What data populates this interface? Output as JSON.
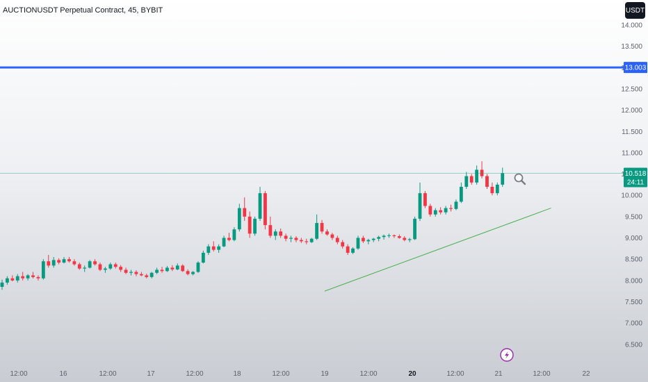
{
  "header": {
    "title": "AUCTIONUSDT Perpetual Contract, 45, BYBIT",
    "currency": "USDT"
  },
  "colors": {
    "up": "#089981",
    "down": "#f23645",
    "alert_line": "#2962ff",
    "trendline": "#4caf50",
    "price_line": "#089981"
  },
  "price_tag": {
    "price": "10.518",
    "countdown": "24:11"
  },
  "alert_line": {
    "label": "13.003",
    "price": 13.003
  },
  "icons": {
    "zoom": "magnifier-icon",
    "event": "lightning-icon"
  },
  "chart_data": {
    "type": "candlestick",
    "title": "AUCTIONUSDT Perpetual Contract, 45, BYBIT",
    "y_axis": {
      "ticks": [
        "14.000",
        "13.500",
        "13.000",
        "12.500",
        "12.000",
        "11.500",
        "11.000",
        "10.500",
        "10.000",
        "9.500",
        "9.000",
        "8.500",
        "8.000",
        "7.500",
        "7.000",
        "6.500"
      ],
      "range": [
        6.2,
        14.3
      ]
    },
    "x_axis": {
      "ticks": [
        {
          "label": "12:00",
          "bold": false
        },
        {
          "label": "16",
          "bold": false
        },
        {
          "label": "12:00",
          "bold": false
        },
        {
          "label": "17",
          "bold": false
        },
        {
          "label": "12:00",
          "bold": false
        },
        {
          "label": "18",
          "bold": false
        },
        {
          "label": "12:00",
          "bold": false
        },
        {
          "label": "19",
          "bold": false
        },
        {
          "label": "12:00",
          "bold": false
        },
        {
          "label": "20",
          "bold": true
        },
        {
          "label": "12:00",
          "bold": false
        },
        {
          "label": "21",
          "bold": false
        },
        {
          "label": "12:00",
          "bold": false
        },
        {
          "label": "22",
          "bold": false
        }
      ]
    },
    "horizontal_line": 13.003,
    "last_price": 10.518,
    "trendline": {
      "start": [
        "19 00:00",
        7.75
      ],
      "end": [
        "21 14:00",
        9.7
      ]
    },
    "candles": [
      [
        7.85,
        8.02,
        7.78,
        7.95
      ],
      [
        7.95,
        8.1,
        7.9,
        8.05
      ],
      [
        8.05,
        8.12,
        7.98,
        8.0
      ],
      [
        8.0,
        8.15,
        7.95,
        8.1
      ],
      [
        8.1,
        8.2,
        8.0,
        8.05
      ],
      [
        8.05,
        8.15,
        8.0,
        8.12
      ],
      [
        8.12,
        8.2,
        8.05,
        8.08
      ],
      [
        8.08,
        8.12,
        8.0,
        8.05
      ],
      [
        8.05,
        8.5,
        8.02,
        8.45
      ],
      [
        8.45,
        8.6,
        8.3,
        8.35
      ],
      [
        8.35,
        8.55,
        8.3,
        8.48
      ],
      [
        8.48,
        8.52,
        8.38,
        8.42
      ],
      [
        8.42,
        8.55,
        8.4,
        8.5
      ],
      [
        8.5,
        8.55,
        8.42,
        8.45
      ],
      [
        8.45,
        8.5,
        8.35,
        8.38
      ],
      [
        8.38,
        8.42,
        8.25,
        8.28
      ],
      [
        8.28,
        8.35,
        8.2,
        8.3
      ],
      [
        8.3,
        8.48,
        8.28,
        8.45
      ],
      [
        8.45,
        8.5,
        8.35,
        8.38
      ],
      [
        8.38,
        8.42,
        8.22,
        8.25
      ],
      [
        8.25,
        8.32,
        8.18,
        8.28
      ],
      [
        8.28,
        8.42,
        8.25,
        8.38
      ],
      [
        8.38,
        8.42,
        8.28,
        8.32
      ],
      [
        8.32,
        8.36,
        8.2,
        8.25
      ],
      [
        8.25,
        8.3,
        8.15,
        8.18
      ],
      [
        8.18,
        8.25,
        8.12,
        8.2
      ],
      [
        8.2,
        8.24,
        8.1,
        8.15
      ],
      [
        8.15,
        8.2,
        8.1,
        8.12
      ],
      [
        8.12,
        8.16,
        8.05,
        8.08
      ],
      [
        8.08,
        8.2,
        8.05,
        8.18
      ],
      [
        8.18,
        8.3,
        8.15,
        8.25
      ],
      [
        8.25,
        8.32,
        8.18,
        8.22
      ],
      [
        8.22,
        8.34,
        8.2,
        8.3
      ],
      [
        8.3,
        8.36,
        8.22,
        8.26
      ],
      [
        8.26,
        8.4,
        8.24,
        8.35
      ],
      [
        8.35,
        8.38,
        8.2,
        8.22
      ],
      [
        8.22,
        8.26,
        8.12,
        8.15
      ],
      [
        8.15,
        8.22,
        8.12,
        8.2
      ],
      [
        8.2,
        8.45,
        8.18,
        8.42
      ],
      [
        8.42,
        8.7,
        8.4,
        8.65
      ],
      [
        8.65,
        8.85,
        8.6,
        8.8
      ],
      [
        8.8,
        8.92,
        8.68,
        8.72
      ],
      [
        8.72,
        8.85,
        8.65,
        8.8
      ],
      [
        8.8,
        9.05,
        8.78,
        9.0
      ],
      [
        9.0,
        9.12,
        8.92,
        8.95
      ],
      [
        8.95,
        9.25,
        8.92,
        9.2
      ],
      [
        9.2,
        9.8,
        9.15,
        9.7
      ],
      [
        9.7,
        9.95,
        9.4,
        9.5
      ],
      [
        9.5,
        9.62,
        9.0,
        9.1
      ],
      [
        9.1,
        9.5,
        9.05,
        9.45
      ],
      [
        9.45,
        10.2,
        9.4,
        10.05
      ],
      [
        10.05,
        10.1,
        9.2,
        9.3
      ],
      [
        9.3,
        9.5,
        9.0,
        9.05
      ],
      [
        9.05,
        9.2,
        8.95,
        9.15
      ],
      [
        9.15,
        9.22,
        9.0,
        9.05
      ],
      [
        9.05,
        9.1,
        8.92,
        8.98
      ],
      [
        8.98,
        9.05,
        8.9,
        9.0
      ],
      [
        9.0,
        9.04,
        8.9,
        8.95
      ],
      [
        8.95,
        9.0,
        8.88,
        8.92
      ],
      [
        8.92,
        8.98,
        8.85,
        8.9
      ],
      [
        8.9,
        9.0,
        8.88,
        8.98
      ],
      [
        8.98,
        9.55,
        8.95,
        9.35
      ],
      [
        9.35,
        9.42,
        9.1,
        9.15
      ],
      [
        9.15,
        9.2,
        9.05,
        9.08
      ],
      [
        9.08,
        9.12,
        8.95,
        9.0
      ],
      [
        9.0,
        9.05,
        8.85,
        8.9
      ],
      [
        8.9,
        8.95,
        8.75,
        8.8
      ],
      [
        8.8,
        8.85,
        8.6,
        8.65
      ],
      [
        8.65,
        8.78,
        8.62,
        8.75
      ],
      [
        8.75,
        9.05,
        8.72,
        9.0
      ],
      [
        9.0,
        9.05,
        8.88,
        8.92
      ],
      [
        8.92,
        8.98,
        8.85,
        8.95
      ],
      [
        8.95,
        9.0,
        8.9,
        8.98
      ],
      [
        8.98,
        9.05,
        8.92,
        9.02
      ],
      [
        9.02,
        9.08,
        8.96,
        9.05
      ],
      [
        9.05,
        9.1,
        9.0,
        9.06
      ],
      [
        9.06,
        9.08,
        9.0,
        9.04
      ],
      [
        9.04,
        9.08,
        8.98,
        9.0
      ],
      [
        9.0,
        9.04,
        8.92,
        8.95
      ],
      [
        8.95,
        9.0,
        8.9,
        8.97
      ],
      [
        8.97,
        9.5,
        8.95,
        9.45
      ],
      [
        9.45,
        10.3,
        9.4,
        10.05
      ],
      [
        10.05,
        10.1,
        9.7,
        9.75
      ],
      [
        9.75,
        9.8,
        9.5,
        9.55
      ],
      [
        9.55,
        9.7,
        9.5,
        9.65
      ],
      [
        9.65,
        9.72,
        9.55,
        9.6
      ],
      [
        9.6,
        9.75,
        9.55,
        9.7
      ],
      [
        9.7,
        9.78,
        9.62,
        9.68
      ],
      [
        9.68,
        9.9,
        9.65,
        9.85
      ],
      [
        9.85,
        10.3,
        9.82,
        10.2
      ],
      [
        10.2,
        10.55,
        10.15,
        10.45
      ],
      [
        10.45,
        10.5,
        10.25,
        10.3
      ],
      [
        10.3,
        10.7,
        10.25,
        10.6
      ],
      [
        10.6,
        10.8,
        10.4,
        10.45
      ],
      [
        10.45,
        10.5,
        10.15,
        10.2
      ],
      [
        10.2,
        10.3,
        10.0,
        10.05
      ],
      [
        10.05,
        10.3,
        10.0,
        10.25
      ],
      [
        10.25,
        10.65,
        10.2,
        10.52
      ]
    ]
  }
}
